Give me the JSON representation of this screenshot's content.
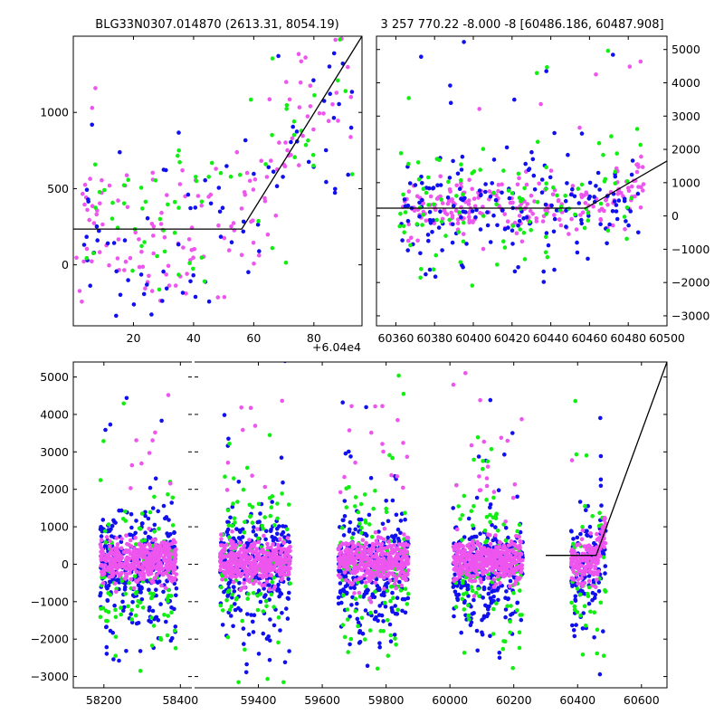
{
  "chart_data": [
    {
      "id": "top-left",
      "type": "scatter",
      "title": "BLG33N0307.014870 (2613.31, 8054.19)",
      "offset_label": "+6.04e4",
      "xlim": [
        0,
        96
      ],
      "ylim": [
        -400,
        1500
      ],
      "xticks": [
        20,
        40,
        60,
        80
      ],
      "yticks": [
        0,
        500,
        1000
      ],
      "x_tick_labels": [
        "20",
        "40",
        "60",
        "80"
      ],
      "y_tick_labels": [
        "0",
        "500",
        "1000"
      ],
      "y_axis_side": "left",
      "model_line": [
        [
          0,
          235
        ],
        [
          56,
          235
        ],
        [
          96,
          1500
        ]
      ],
      "series": [
        {
          "color": "#ee55ee",
          "count": 150,
          "seed": 11
        },
        {
          "color": "#1010ee",
          "count": 90,
          "seed": 23
        },
        {
          "color": "#11ee11",
          "count": 70,
          "seed": 37
        }
      ]
    },
    {
      "id": "top-right",
      "type": "scatter",
      "title": "3 257 770.22 -8.000 -8 [60486.186, 60487.908]",
      "xlim": [
        60350,
        60500
      ],
      "ylim": [
        -3300,
        5400
      ],
      "xticks": [
        60360,
        60380,
        60400,
        60420,
        60440,
        60460,
        60480,
        60500
      ],
      "yticks": [
        -3000,
        -2000,
        -1000,
        0,
        1000,
        2000,
        3000,
        4000,
        5000
      ],
      "x_tick_labels": [
        "60360",
        "60380",
        "60400",
        "60420",
        "60440",
        "60460",
        "60480",
        "60500"
      ],
      "y_tick_labels": [
        "−3000",
        "−2000",
        "−1000",
        "0",
        "1000",
        "2000",
        "3000",
        "4000",
        "5000"
      ],
      "y_axis_side": "right",
      "model_line": [
        [
          60350,
          235
        ],
        [
          60458,
          235
        ],
        [
          60500,
          1650
        ]
      ],
      "series": [
        {
          "color": "#ee55ee",
          "count": 230,
          "seed": 41
        },
        {
          "color": "#1010ee",
          "count": 180,
          "seed": 53
        },
        {
          "color": "#11ee11",
          "count": 110,
          "seed": 67
        }
      ]
    },
    {
      "id": "bottom-left",
      "type": "scatter",
      "xlim": [
        58120,
        58430
      ],
      "ylim": [
        -3300,
        5400
      ],
      "xticks": [
        58200,
        58400
      ],
      "yticks": [
        -3000,
        -2000,
        -1000,
        0,
        1000,
        2000,
        3000,
        4000,
        5000
      ],
      "x_tick_labels": [
        "58200",
        "58400"
      ],
      "y_tick_labels": [
        "−3000",
        "−2000",
        "−1000",
        "0",
        "1000",
        "2000",
        "3000",
        "4000",
        "5000"
      ],
      "seasons": [
        [
          58190,
          58390
        ]
      ],
      "series": [
        {
          "color": "#1010ee",
          "per_season": 320,
          "seed": 71
        },
        {
          "color": "#11ee11",
          "per_season": 110,
          "seed": 83
        },
        {
          "color": "#ee55ee",
          "per_season": 420,
          "seed": 97
        }
      ]
    },
    {
      "id": "bottom-right",
      "type": "scatter",
      "xlim": [
        59200,
        60680
      ],
      "ylim": [
        -3300,
        5400
      ],
      "xticks": [
        59400,
        59600,
        59800,
        60000,
        60200,
        60400,
        60600
      ],
      "yticks": [
        -3000,
        -2000,
        -1000,
        0,
        1000,
        2000,
        3000,
        4000,
        5000
      ],
      "x_tick_labels": [
        "59400",
        "59600",
        "59800",
        "60000",
        "60200",
        "60400",
        "60600"
      ],
      "seasons": [
        [
          59280,
          59500
        ],
        [
          59650,
          59870
        ],
        [
          60010,
          60230
        ],
        [
          60380,
          60488
        ]
      ],
      "model_line": [
        [
          60300,
          235
        ],
        [
          60458,
          235
        ],
        [
          60680,
          5400
        ]
      ],
      "series": [
        {
          "color": "#1010ee",
          "per_season": 300,
          "seed": 101
        },
        {
          "color": "#11ee11",
          "per_season": 110,
          "seed": 113
        },
        {
          "color": "#ee55ee",
          "per_season": 400,
          "seed": 127
        }
      ]
    }
  ]
}
